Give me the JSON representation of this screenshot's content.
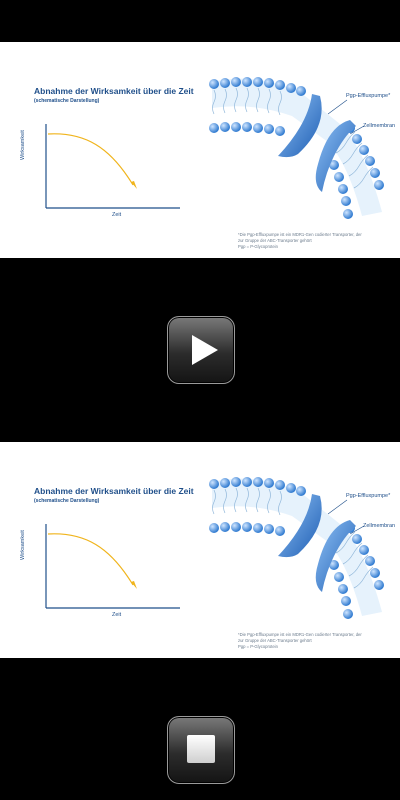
{
  "slides": [
    {
      "title": "Abnahme der Wirksamkeit über die Zeit",
      "subtitle": "(schematische Darstellung)",
      "y_axis_label": "Wirksamkeit",
      "x_axis_label": "Zeit",
      "pump_label": "Pgp-Effluxpumpe*",
      "membrane_label": "Zellmembran",
      "footnote_lines": [
        "*Die Pgp-Effluxpumpe ist ein MDR1-Gen codierter Transporter, der",
        "zur Gruppe der ABC-Transporter gehört",
        "Pgp = P-Glycoprotein"
      ]
    },
    {
      "title": "Abnahme der Wirksamkeit über die Zeit",
      "subtitle": "(schematische Darstellung)",
      "y_axis_label": "Wirksamkeit",
      "x_axis_label": "Zeit",
      "pump_label": "Pgp-Effluxpumpe*",
      "membrane_label": "Zellmembran",
      "footnote_lines": [
        "*Die Pgp-Effluxpumpe ist ein MDR1-Gen codierter Transporter, der",
        "zur Gruppe der ABC-Transporter gehört",
        "Pgp = P-Glycoprotein"
      ]
    }
  ],
  "colors": {
    "background": "#000000",
    "title_blue": "#1f4f8a",
    "curve": "#f0b41c",
    "membrane_blue": "#3a86d6",
    "button_dark": "#2c2c2c"
  },
  "controls": {
    "play_icon": "play-icon",
    "stop_icon": "stop-icon"
  }
}
